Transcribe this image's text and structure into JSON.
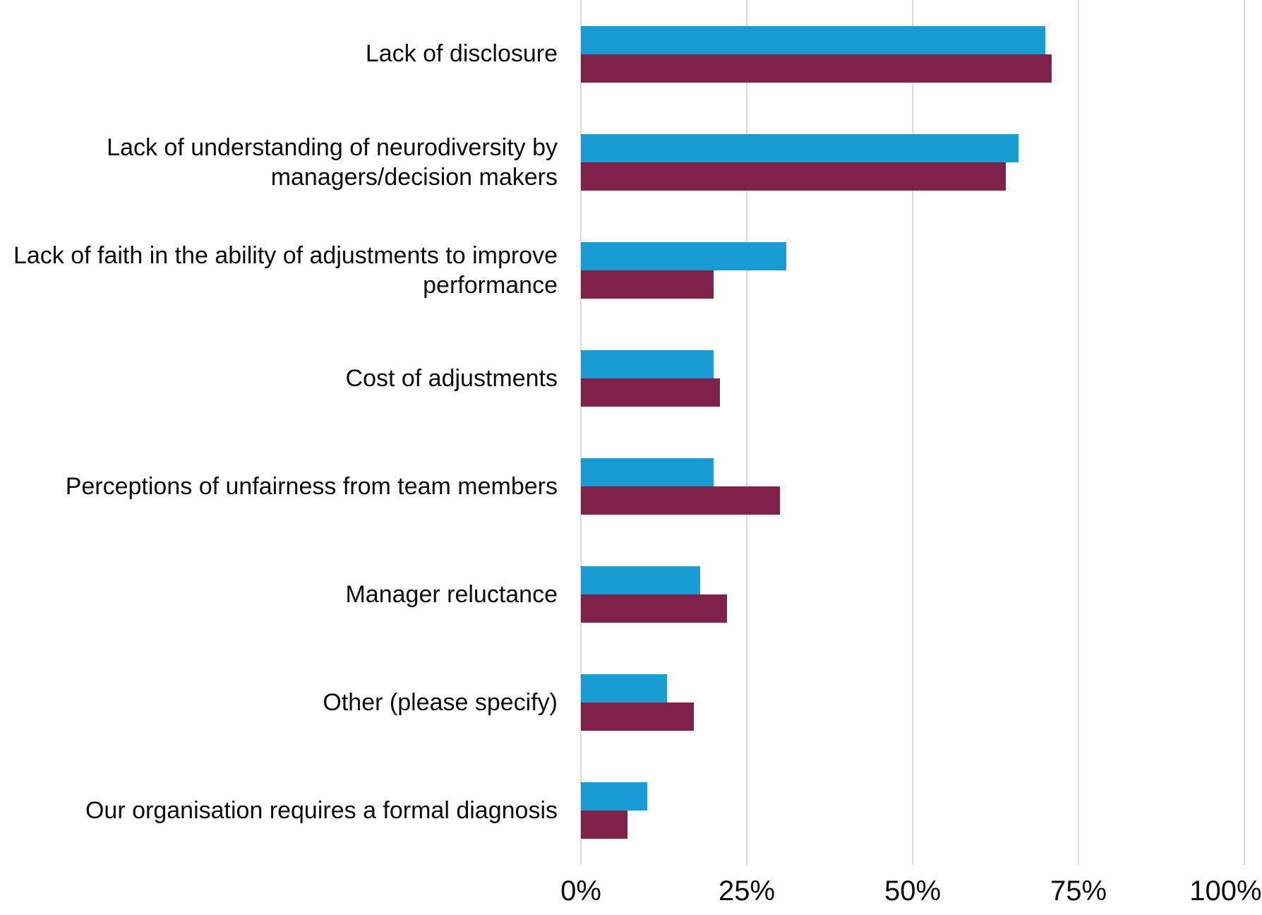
{
  "chart_data": {
    "type": "bar",
    "orientation": "horizontal",
    "title": "",
    "categories": [
      "Lack of disclosure",
      "Lack of understanding of neurodiversity by managers/decision makers",
      "Lack of faith in the ability of adjustments to improve performance",
      "Cost of adjustments",
      "Perceptions of unfairness from team members",
      "Manager reluctance",
      "Other (please specify)",
      "Our organisation requires a formal diagnosis"
    ],
    "series": [
      {
        "name": "blue-series",
        "color": "#189cd3",
        "values": [
          70,
          66,
          31,
          20,
          20,
          18,
          13,
          10
        ]
      },
      {
        "name": "maroon-series",
        "color": "#7f2148",
        "values": [
          71,
          64,
          20,
          21,
          30,
          22,
          17,
          7
        ]
      }
    ],
    "x_axis": {
      "tick_labels": [
        "0%",
        "25%",
        "50%",
        "75%",
        "100%"
      ],
      "tick_positions": [
        0,
        25,
        50,
        75,
        100
      ],
      "range": [
        0,
        100
      ]
    },
    "grid": "vertical",
    "gridline_color": "#d9d9d9",
    "legend": "none",
    "background_color": "#ffffff"
  }
}
